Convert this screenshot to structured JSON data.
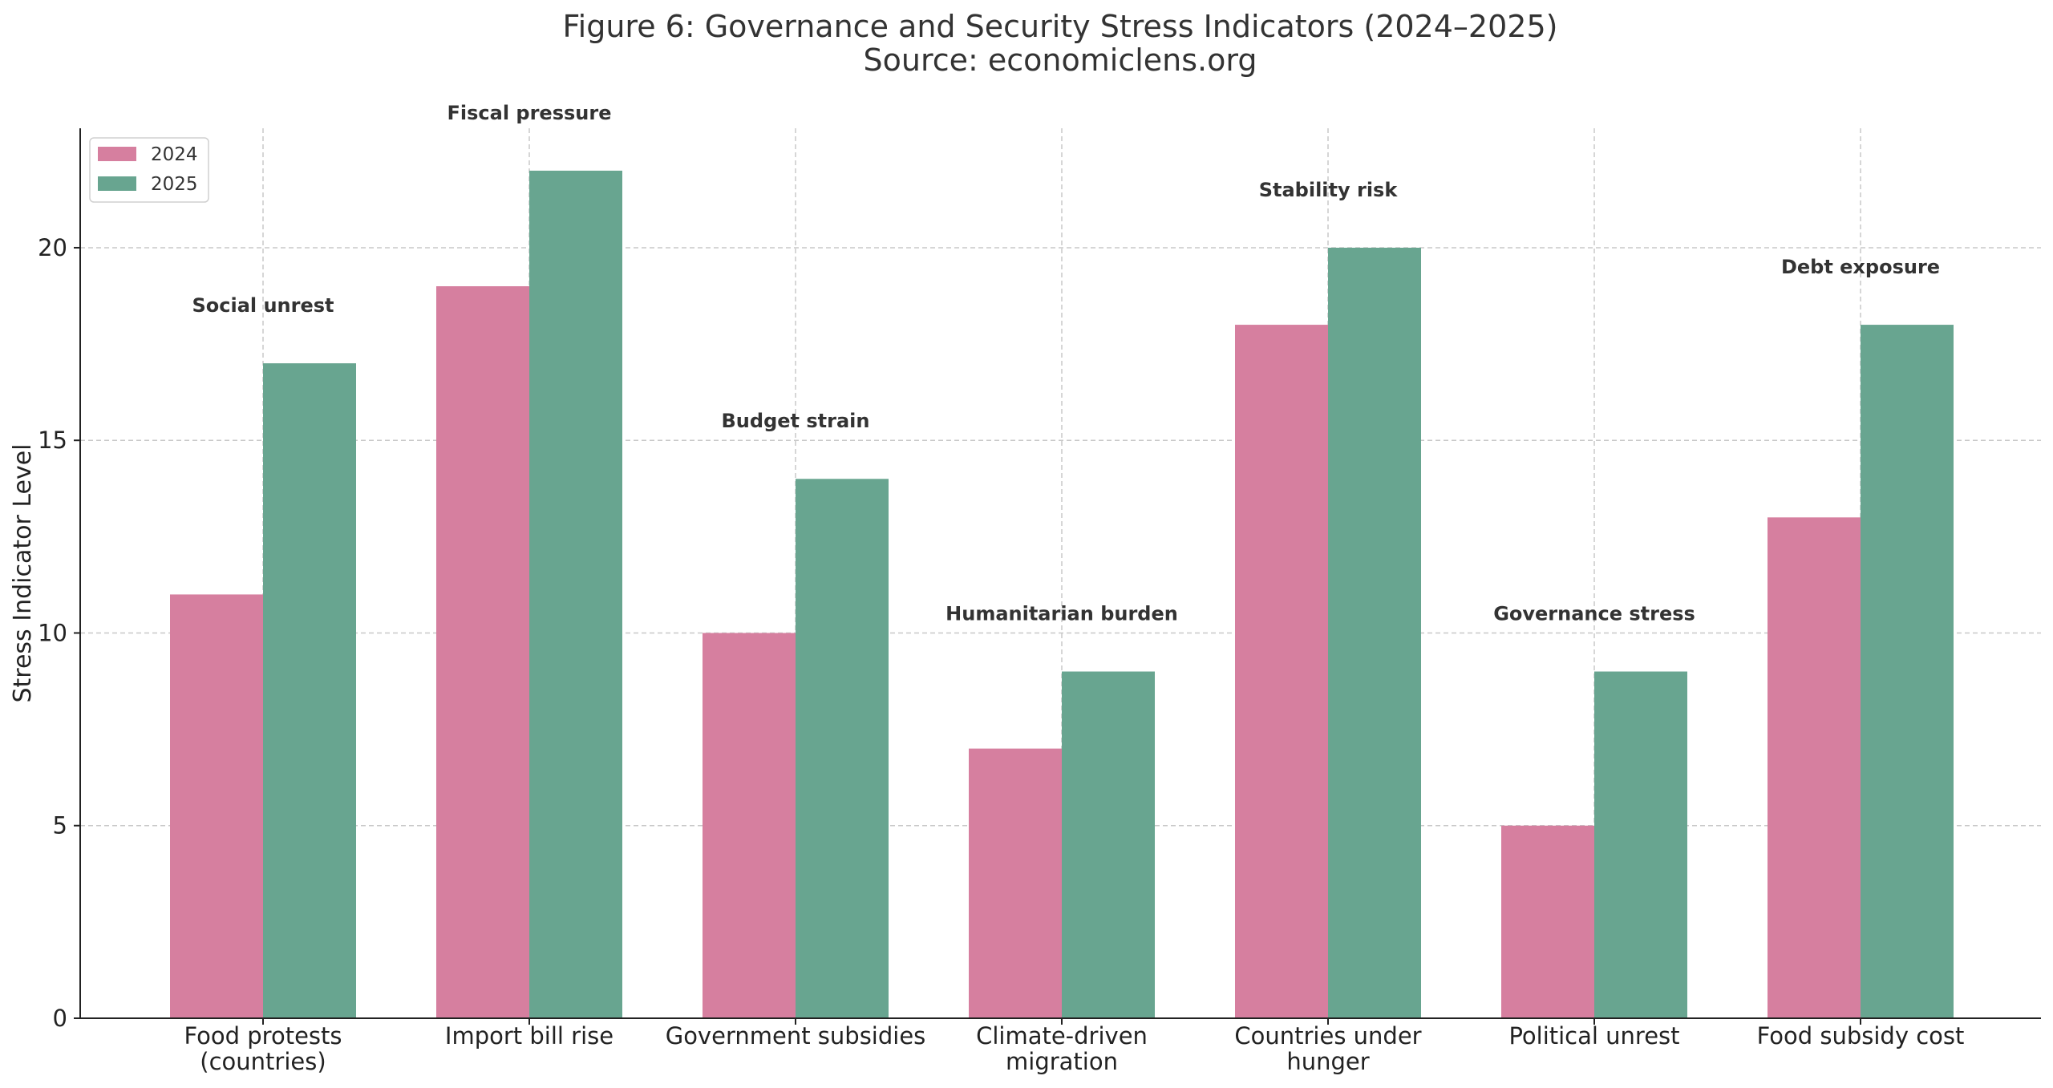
{
  "chart_data": {
    "type": "bar",
    "title": "Figure 6: Governance and Security Stress Indicators (2024–2025)",
    "subtitle": "Source: economiclens.org",
    "xlabel": "",
    "ylabel": "Stress Indicator Level",
    "ylim": [
      0,
      23.1
    ],
    "yticks": [
      0,
      5,
      10,
      15,
      20
    ],
    "grid": true,
    "legend_position": "top-left",
    "categories": [
      [
        "Food protests",
        "(countries)"
      ],
      [
        "Import bill rise"
      ],
      [
        "Government subsidies"
      ],
      [
        "Climate-driven",
        "migration"
      ],
      [
        "Countries under",
        "hunger"
      ],
      [
        "Political unrest"
      ],
      [
        "Food subsidy cost"
      ]
    ],
    "series": [
      {
        "name": "2024",
        "color": "#d67f9f",
        "values": [
          11,
          19,
          10,
          7,
          18,
          5,
          13
        ]
      },
      {
        "name": "2025",
        "color": "#68a590",
        "values": [
          17,
          22,
          14,
          9,
          20,
          9,
          18
        ]
      }
    ],
    "annotations": [
      "Social unrest",
      "Fiscal pressure",
      "Budget strain",
      "Humanitarian burden",
      "Stability risk",
      "Governance stress",
      "Debt exposure"
    ]
  }
}
